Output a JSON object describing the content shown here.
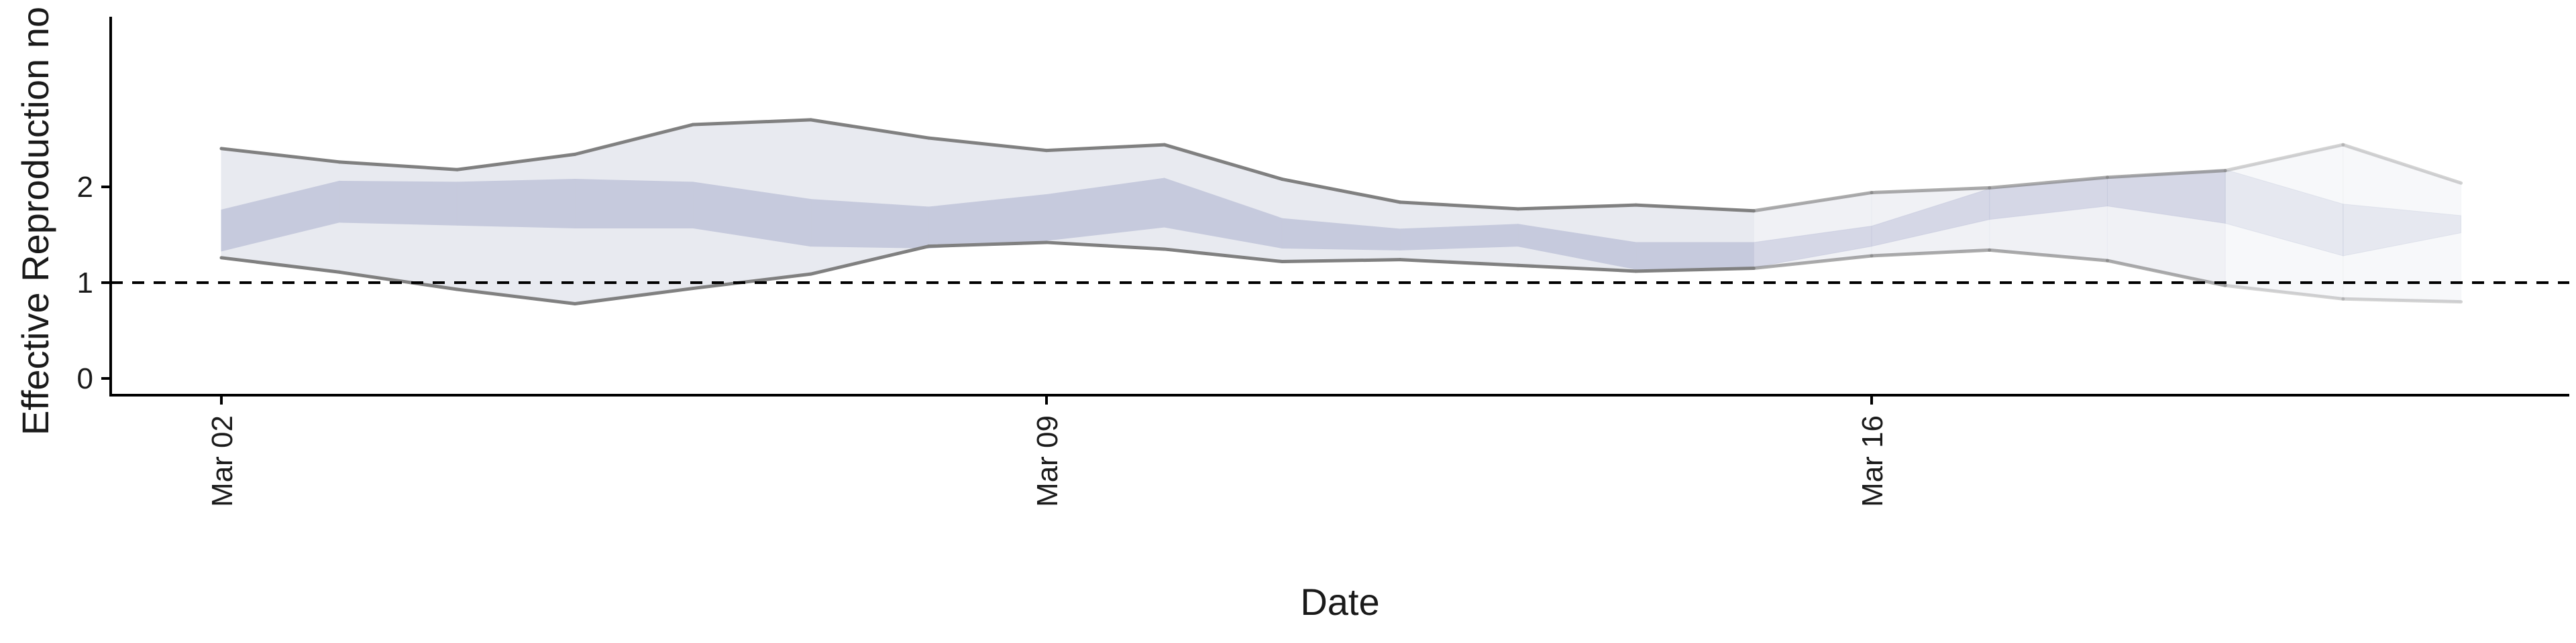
{
  "chart_data": {
    "type": "area",
    "title": "",
    "xlabel": "Date",
    "ylabel": "Effective Reproduction no",
    "x_ticks": [
      "Mar 02",
      "Mar 09",
      "Mar 16"
    ],
    "y_ticks": [
      "0",
      "1",
      "2"
    ],
    "ylim": [
      -0.1,
      2.9
    ],
    "xlim": [
      "2020-03-01",
      "2020-03-22"
    ],
    "reference_line": {
      "y": 1,
      "style": "dashed"
    },
    "grid": false,
    "legend": "none",
    "dates": [
      "2020-03-02",
      "2020-03-03",
      "2020-03-04",
      "2020-03-05",
      "2020-03-06",
      "2020-03-07",
      "2020-03-08",
      "2020-03-09",
      "2020-03-10",
      "2020-03-11",
      "2020-03-12",
      "2020-03-13",
      "2020-03-14",
      "2020-03-15",
      "2020-03-16",
      "2020-03-17",
      "2020-03-18",
      "2020-03-19",
      "2020-03-20",
      "2020-03-21"
    ],
    "series": [
      {
        "kind": "outer_interval",
        "lower": [
          1.26,
          1.11,
          0.93,
          0.78,
          0.94,
          1.09,
          1.38,
          1.42,
          1.35,
          1.22,
          1.24,
          1.18,
          1.12,
          1.15,
          1.28,
          1.34,
          1.23,
          0.97,
          0.83,
          0.8
        ],
        "upper": [
          2.4,
          2.26,
          2.18,
          2.34,
          2.65,
          2.7,
          2.51,
          2.38,
          2.44,
          2.08,
          1.84,
          1.77,
          1.81,
          1.75,
          1.94,
          1.99,
          2.1,
          2.17,
          2.44,
          2.04
        ]
      },
      {
        "kind": "inner_interval",
        "lower": [
          1.33,
          1.63,
          1.6,
          1.57,
          1.57,
          1.38,
          1.36,
          1.44,
          1.58,
          1.36,
          1.34,
          1.38,
          1.14,
          1.16,
          1.38,
          1.66,
          1.8,
          1.62,
          1.28,
          1.52
        ],
        "upper": [
          1.76,
          2.06,
          2.05,
          2.08,
          2.05,
          1.87,
          1.79,
          1.92,
          2.09,
          1.67,
          1.56,
          1.61,
          1.42,
          1.42,
          1.59,
          1.98,
          2.1,
          2.18,
          1.82,
          1.7
        ]
      }
    ],
    "colors": {
      "outer_band": "#e8eaf0",
      "inner_band": "#c6cadd",
      "bound_line": "#808080",
      "axis": "#000000"
    },
    "estimate_types": [
      {
        "from": "2020-03-02",
        "to": "2020-03-15",
        "kind": "estimate",
        "band_opacity": 1.0
      },
      {
        "from": "2020-03-15",
        "to": "2020-03-19",
        "kind": "estimate based on partial data",
        "band_opacity": 0.65
      },
      {
        "from": "2020-03-19",
        "to": "2020-03-21",
        "kind": "forecast",
        "band_opacity": 0.35
      }
    ]
  }
}
